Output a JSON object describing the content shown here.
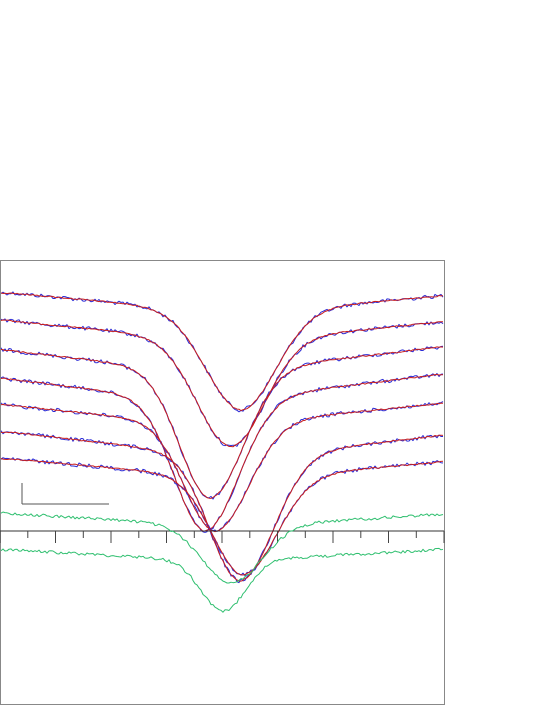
{
  "chart_data": {
    "type": "line",
    "title": "",
    "xlabel": "",
    "ylabel": "",
    "legend": "none",
    "grid": false,
    "axis_ticks": {
      "major": 8,
      "minor_per_major": 2
    },
    "colors": {
      "observed": "#2b2bd6",
      "model": "#c81e1e",
      "residual": "#2fbf6f",
      "frame": "#888888"
    },
    "profiles": [
      {
        "name": "",
        "continuum": 293,
        "center": 241,
        "depth": 96,
        "width": 35,
        "skew": 0.0
      },
      {
        "name": "",
        "continuum": 320,
        "center": 231,
        "depth": 104,
        "width": 34,
        "skew": 0.0
      },
      {
        "name": "",
        "continuum": 347,
        "center": 210,
        "depth": 124,
        "width": 32,
        "skew": 0.05
      },
      {
        "name": "",
        "continuum": 375,
        "center": 205,
        "depth": 128,
        "width": 32,
        "skew": 0.05
      },
      {
        "name": "",
        "continuum": 403,
        "center": 215,
        "depth": 105,
        "width": 32,
        "skew": 0.05
      },
      {
        "name": "",
        "continuum": 432,
        "center": 240,
        "depth": 122,
        "width": 32,
        "skew": 0.05
      },
      {
        "name": "",
        "continuum": 459,
        "center": 243,
        "depth": 95,
        "width": 32,
        "skew": 0.05
      }
    ],
    "residuals": [
      {
        "name": "",
        "continuum": 513,
        "center": 232,
        "depth": 56,
        "width": 30
      },
      {
        "name": "",
        "continuum": 549,
        "center": 223,
        "depth": 50,
        "width": 22
      }
    ]
  }
}
